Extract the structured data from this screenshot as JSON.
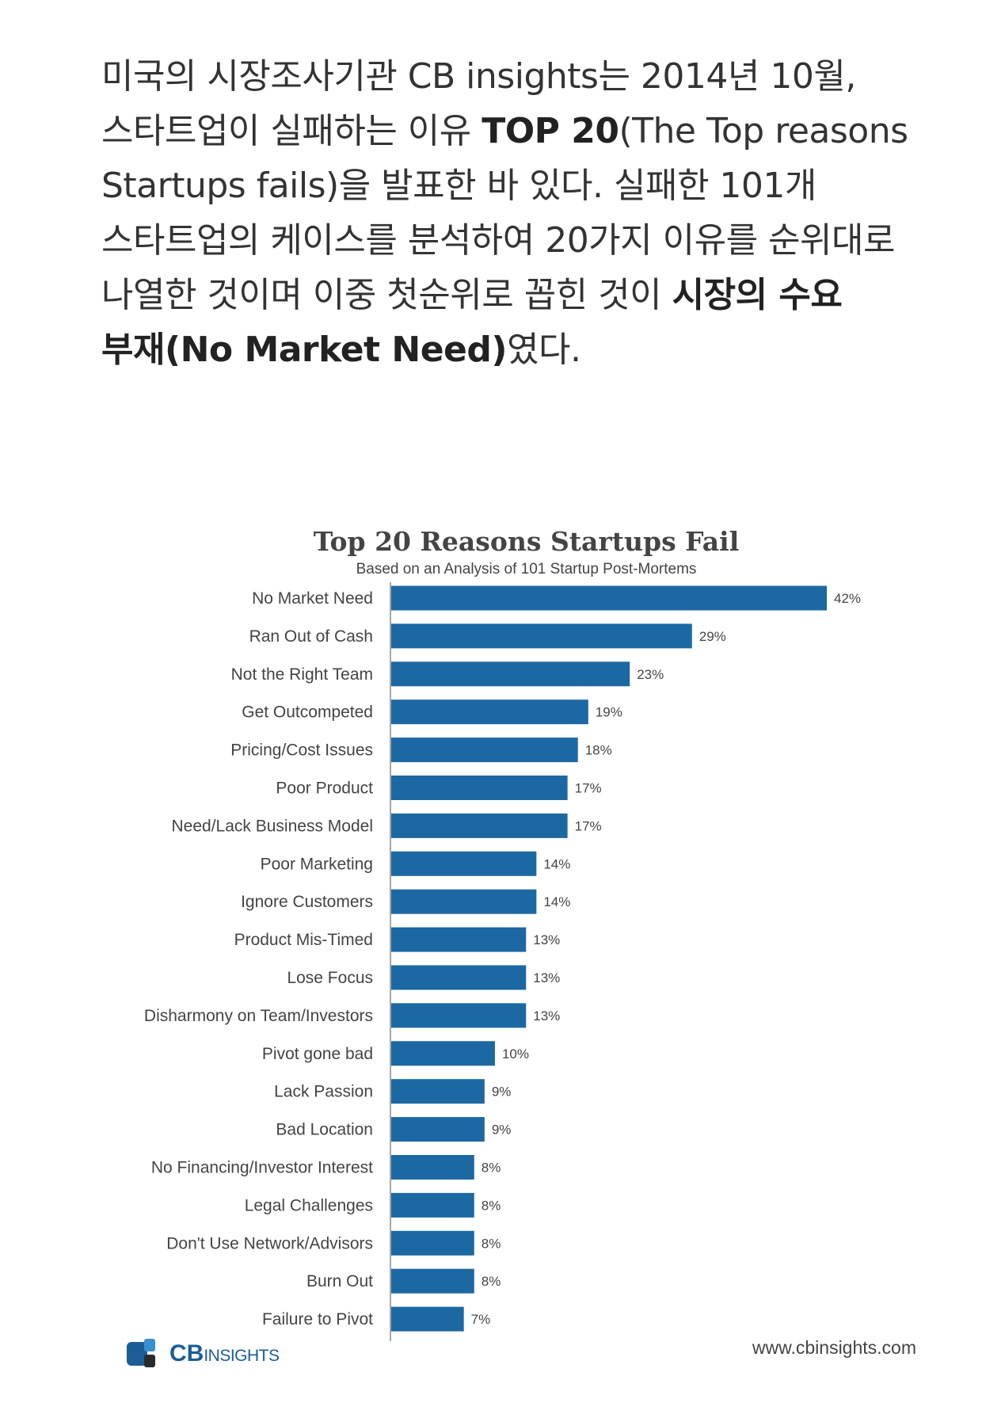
{
  "intro": {
    "lines": [
      [
        {
          "text": "미국의 시장조사기관 CB insights는 2014년 10월,",
          "bold": false
        }
      ],
      [
        {
          "text": "스타트업이 실패하는 이유 ",
          "bold": false
        },
        {
          "text": "TOP 20",
          "bold": true
        },
        {
          "text": "(The Top reasons",
          "bold": false
        }
      ],
      [
        {
          "text": "Startups fails)을 발표한 바 있다. 실패한 101개",
          "bold": false
        }
      ],
      [
        {
          "text": "스타트업의 케이스를 분석하여 20가지 이유를 순위대로",
          "bold": false
        }
      ],
      [
        {
          "text": "나열한 것이며 이중 첫순위로 꼽힌 것이 ",
          "bold": false
        },
        {
          "text": "시장의 수요",
          "bold": true
        }
      ],
      [
        {
          "text": "부재(No Market Need)",
          "bold": true
        },
        {
          "text": "였다.",
          "bold": false
        }
      ]
    ]
  },
  "chart_data": {
    "type": "bar",
    "orientation": "horizontal",
    "title": "Top 20 Reasons Startups Fail",
    "subtitle": "Based on an Analysis of 101 Startup Post-Mortems",
    "categories": [
      "No Market Need",
      "Ran Out of Cash",
      "Not the Right Team",
      "Get Outcompeted",
      "Pricing/Cost Issues",
      "Poor Product",
      "Need/Lack Business Model",
      "Poor Marketing",
      "Ignore Customers",
      "Product Mis-Timed",
      "Lose Focus",
      "Disharmony on Team/Investors",
      "Pivot gone bad",
      "Lack Passion",
      "Bad Location",
      "No Financing/Investor Interest",
      "Legal Challenges",
      "Don't Use Network/Advisors",
      "Burn Out",
      "Failure to Pivot"
    ],
    "values": [
      42,
      29,
      23,
      19,
      18,
      17,
      17,
      14,
      14,
      13,
      13,
      13,
      10,
      9,
      9,
      8,
      8,
      8,
      8,
      7
    ],
    "value_labels": [
      "42%",
      "29%",
      "23%",
      "19%",
      "18%",
      "17%",
      "17%",
      "14%",
      "14%",
      "13%",
      "13%",
      "13%",
      "10%",
      "9%",
      "9%",
      "8%",
      "8%",
      "8%",
      "8%",
      "7%"
    ],
    "xlim": [
      0,
      42
    ],
    "bar_color": "#1c68a3",
    "grid": false,
    "legend": "none"
  },
  "footer": {
    "logo_cb": "CB",
    "logo_insights": "INSIGHTS",
    "logo_colors": [
      "#1b5d97",
      "#3a8fd1",
      "#2a2a2a"
    ],
    "url": "www.cbinsights.com"
  }
}
